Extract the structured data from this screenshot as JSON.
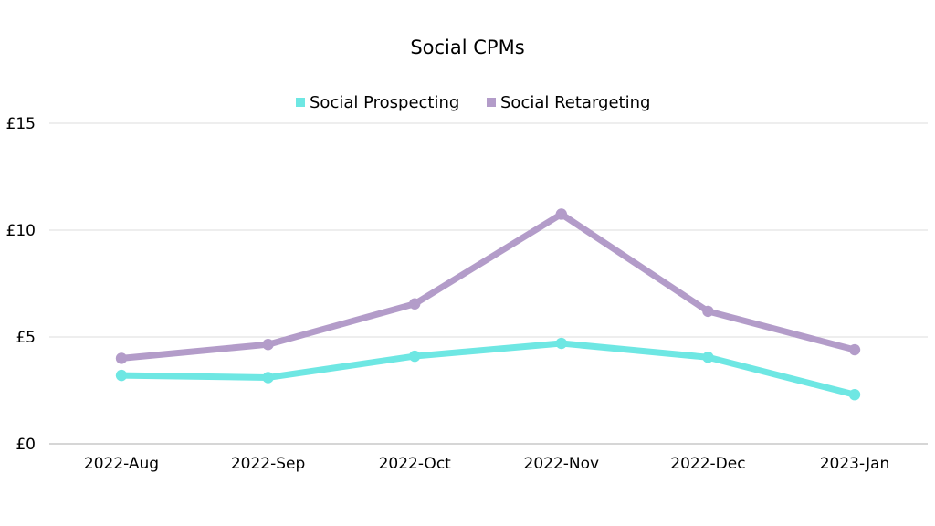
{
  "chart_data": {
    "type": "line",
    "title": "Social CPMs",
    "categories": [
      "2022-Aug",
      "2022-Sep",
      "2022-Oct",
      "2022-Nov",
      "2022-Dec",
      "2023-Jan"
    ],
    "y_ticks": [
      "£0",
      "£5",
      "£10",
      "£15"
    ],
    "ylim": [
      0,
      15
    ],
    "grid": true,
    "legend_position": "top-center",
    "series": [
      {
        "name": "Social Prospecting",
        "color": "#6ee7e3",
        "values": [
          3.2,
          3.1,
          4.1,
          4.7,
          4.05,
          2.3
        ]
      },
      {
        "name": "Social Retargeting",
        "color": "#b39cc9",
        "values": [
          4.0,
          4.65,
          6.55,
          10.75,
          6.2,
          4.4
        ]
      }
    ]
  }
}
